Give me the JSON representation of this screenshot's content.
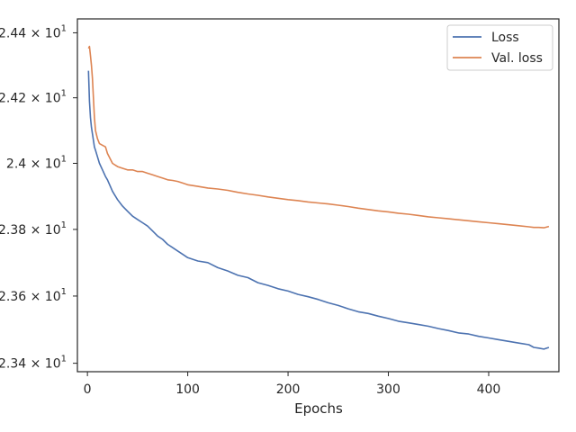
{
  "chart_data": {
    "type": "line",
    "xlabel": "Epochs",
    "ylabel": "",
    "xlim": [
      -10,
      470
    ],
    "ylim": [
      23.375,
      24.443
    ],
    "yscale": "log",
    "grid": false,
    "legend_position": "top-right",
    "xticks": [
      0,
      100,
      200,
      300,
      400
    ],
    "xtick_labels": [
      "0",
      "100",
      "200",
      "300",
      "400"
    ],
    "yticks": [
      23.4,
      23.6,
      23.8,
      24.0,
      24.2,
      24.4
    ],
    "ytick_labels": [
      {
        "mantissa": "2.34",
        "exp": "1"
      },
      {
        "mantissa": "2.36",
        "exp": "1"
      },
      {
        "mantissa": "2.38",
        "exp": "1"
      },
      {
        "mantissa": "2.4",
        "exp": "1"
      },
      {
        "mantissa": "2.42",
        "exp": "1"
      },
      {
        "mantissa": "2.44",
        "exp": "1"
      }
    ],
    "series": [
      {
        "name": "Loss",
        "color": "#4c72b0",
        "x": [
          1,
          2,
          3,
          4,
          5,
          6,
          7,
          8,
          10,
          12,
          15,
          18,
          20,
          25,
          30,
          35,
          40,
          45,
          50,
          55,
          60,
          65,
          70,
          75,
          80,
          85,
          90,
          95,
          100,
          110,
          120,
          130,
          140,
          150,
          160,
          170,
          180,
          190,
          200,
          210,
          220,
          230,
          240,
          250,
          260,
          270,
          280,
          290,
          300,
          310,
          320,
          330,
          340,
          350,
          360,
          370,
          380,
          390,
          400,
          410,
          420,
          430,
          440,
          445,
          450,
          455,
          460
        ],
        "values": [
          24.283,
          24.19,
          24.14,
          24.11,
          24.09,
          24.07,
          24.05,
          24.04,
          24.02,
          24.0,
          23.98,
          23.96,
          23.95,
          23.915,
          23.89,
          23.87,
          23.855,
          23.84,
          23.83,
          23.82,
          23.81,
          23.795,
          23.78,
          23.77,
          23.755,
          23.745,
          23.735,
          23.725,
          23.715,
          23.705,
          23.7,
          23.685,
          23.675,
          23.662,
          23.655,
          23.64,
          23.632,
          23.622,
          23.615,
          23.605,
          23.598,
          23.59,
          23.58,
          23.572,
          23.562,
          23.553,
          23.548,
          23.54,
          23.533,
          23.525,
          23.52,
          23.515,
          23.51,
          23.503,
          23.497,
          23.49,
          23.487,
          23.48,
          23.475,
          23.47,
          23.465,
          23.46,
          23.455,
          23.447,
          23.445,
          23.442,
          23.447
        ]
      },
      {
        "name": "Val. loss",
        "color": "#dd8452",
        "x": [
          1,
          2,
          3,
          4,
          5,
          6,
          7,
          8,
          10,
          12,
          15,
          18,
          20,
          25,
          30,
          35,
          40,
          45,
          50,
          55,
          60,
          65,
          70,
          75,
          80,
          85,
          90,
          95,
          100,
          110,
          120,
          130,
          140,
          150,
          160,
          170,
          180,
          190,
          200,
          210,
          220,
          230,
          240,
          250,
          260,
          270,
          280,
          290,
          300,
          310,
          320,
          330,
          340,
          350,
          360,
          370,
          380,
          390,
          400,
          410,
          420,
          430,
          440,
          445,
          450,
          455,
          460
        ],
        "values": [
          24.352,
          24.358,
          24.33,
          24.3,
          24.26,
          24.2,
          24.14,
          24.1,
          24.075,
          24.06,
          24.055,
          24.05,
          24.03,
          24.0,
          23.99,
          23.985,
          23.98,
          23.98,
          23.975,
          23.975,
          23.97,
          23.965,
          23.96,
          23.955,
          23.95,
          23.948,
          23.945,
          23.94,
          23.935,
          23.93,
          23.925,
          23.922,
          23.918,
          23.912,
          23.907,
          23.903,
          23.898,
          23.894,
          23.89,
          23.887,
          23.883,
          23.88,
          23.877,
          23.873,
          23.869,
          23.864,
          23.86,
          23.856,
          23.853,
          23.849,
          23.846,
          23.842,
          23.838,
          23.835,
          23.832,
          23.829,
          23.826,
          23.823,
          23.82,
          23.817,
          23.814,
          23.811,
          23.808,
          23.806,
          23.806,
          23.805,
          23.809
        ]
      }
    ]
  }
}
